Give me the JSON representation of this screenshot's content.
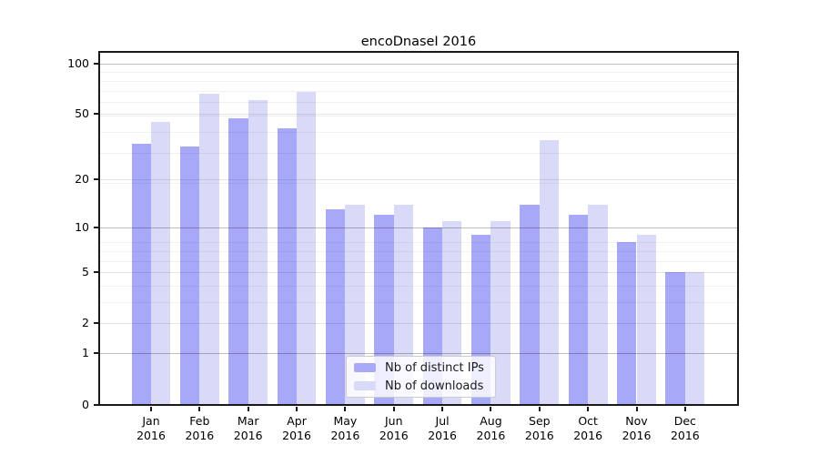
{
  "chart_data": {
    "type": "bar",
    "title": "encoDnaseI 2016",
    "categories": [
      "Jan",
      "Feb",
      "Mar",
      "Apr",
      "May",
      "Jun",
      "Jul",
      "Aug",
      "Sep",
      "Oct",
      "Nov",
      "Dec"
    ],
    "year_suffix": "2016",
    "series": [
      {
        "name": "Nb of distinct IPs",
        "color": "#a8a8f8",
        "values": [
          33,
          32,
          47,
          41,
          13,
          12,
          10,
          9,
          14,
          12,
          8,
          5
        ]
      },
      {
        "name": "Nb of downloads",
        "color": "#d9d9f8",
        "values": [
          45,
          66,
          61,
          68,
          14,
          14,
          11,
          11,
          35,
          14,
          9,
          5
        ]
      }
    ],
    "yticks": [
      0,
      1,
      2,
      5,
      10,
      20,
      50,
      100
    ],
    "xlabel": "",
    "ylabel": "",
    "yscale": "log10(value+1)",
    "ylim": [
      0,
      116
    ],
    "grid": true,
    "legend_position": "lower-center"
  }
}
